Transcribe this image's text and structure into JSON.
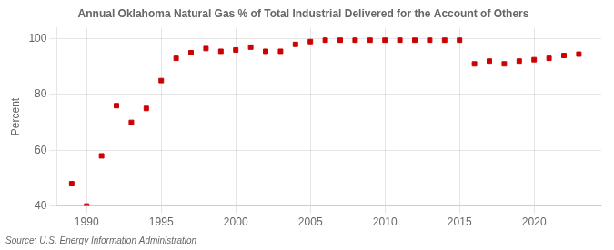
{
  "chart_data": {
    "type": "scatter",
    "title": "Annual Oklahoma Natural Gas % of Total Industrial Delivered for the Account of Others",
    "ylabel": "Percent",
    "source": "Source: U.S. Energy Information Administration",
    "x": [
      1989,
      1990,
      1991,
      1992,
      1993,
      1994,
      1995,
      1996,
      1997,
      1998,
      1999,
      2000,
      2001,
      2002,
      2003,
      2004,
      2005,
      2006,
      2007,
      2008,
      2009,
      2010,
      2011,
      2012,
      2013,
      2014,
      2015,
      2016,
      2017,
      2018,
      2019,
      2020,
      2021,
      2022,
      2023
    ],
    "values": [
      48.0,
      40.0,
      58.0,
      76.0,
      70.0,
      75.0,
      85.0,
      93.0,
      95.0,
      96.5,
      95.5,
      96.0,
      97.0,
      95.5,
      95.5,
      98.0,
      99.0,
      99.5,
      99.5,
      99.5,
      99.5,
      99.5,
      99.5,
      99.5,
      99.5,
      99.5,
      99.5,
      91.0,
      92.0,
      91.0,
      92.0,
      92.5,
      93.0,
      94.0,
      94.5
    ],
    "color": "#cc0000",
    "marker": "square",
    "xlim": [
      1988.0,
      2024.5
    ],
    "xticks": [
      1990,
      1995,
      2000,
      2005,
      2010,
      2015,
      2020
    ],
    "ylim": [
      40,
      104
    ],
    "yticks": [
      40,
      60,
      80,
      100
    ],
    "grid": true
  }
}
